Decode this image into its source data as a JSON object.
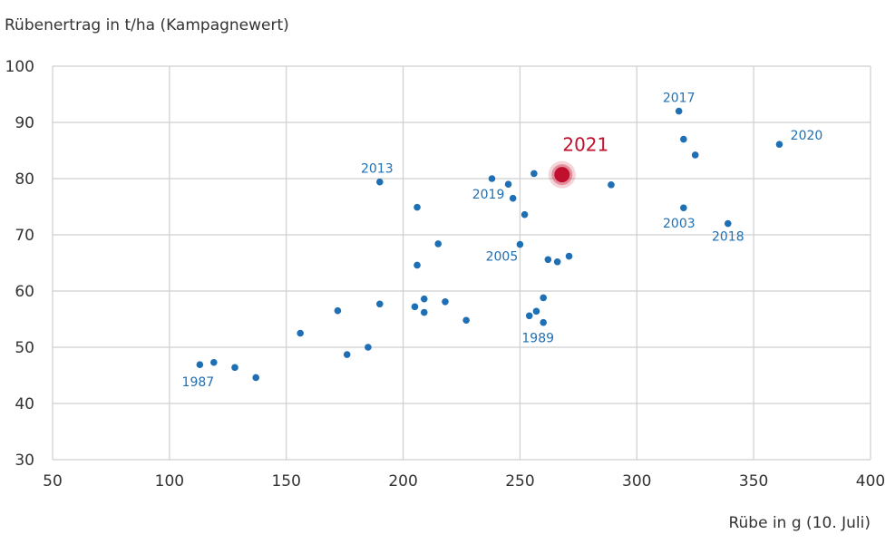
{
  "chart_data": {
    "type": "scatter",
    "ylabel": "Rübenertrag in t/ha (Kampagnewert)",
    "xlabel": "Rübe in g (10. Juli)",
    "xlim": [
      50,
      400
    ],
    "ylim": [
      30,
      100
    ],
    "xticks": [
      50,
      100,
      150,
      200,
      250,
      300,
      350,
      400
    ],
    "yticks": [
      30,
      40,
      50,
      60,
      70,
      80,
      90,
      100
    ],
    "grid": true,
    "colors": {
      "point": "#1f6fb4",
      "highlight": "#c0102e",
      "grid": "#cfcfcf"
    },
    "points": [
      {
        "x": 113,
        "y": 46.9,
        "label": "1987"
      },
      {
        "x": 119,
        "y": 47.3
      },
      {
        "x": 128,
        "y": 46.4
      },
      {
        "x": 137,
        "y": 44.6
      },
      {
        "x": 156,
        "y": 52.5
      },
      {
        "x": 172,
        "y": 56.5
      },
      {
        "x": 176,
        "y": 48.7
      },
      {
        "x": 185,
        "y": 50.0
      },
      {
        "x": 190,
        "y": 79.4,
        "label": "2013"
      },
      {
        "x": 190,
        "y": 57.7
      },
      {
        "x": 205,
        "y": 57.2
      },
      {
        "x": 206,
        "y": 64.6
      },
      {
        "x": 206,
        "y": 74.9
      },
      {
        "x": 209,
        "y": 56.2
      },
      {
        "x": 209,
        "y": 58.6
      },
      {
        "x": 215,
        "y": 68.4
      },
      {
        "x": 218,
        "y": 58.1
      },
      {
        "x": 227,
        "y": 54.8
      },
      {
        "x": 238,
        "y": 80.0
      },
      {
        "x": 245,
        "y": 79.0,
        "label": "2019"
      },
      {
        "x": 247,
        "y": 76.5
      },
      {
        "x": 250,
        "y": 68.3,
        "label": "2005"
      },
      {
        "x": 252,
        "y": 73.6
      },
      {
        "x": 254,
        "y": 55.6
      },
      {
        "x": 256,
        "y": 80.9
      },
      {
        "x": 257,
        "y": 56.4
      },
      {
        "x": 260,
        "y": 58.8
      },
      {
        "x": 260,
        "y": 54.4,
        "label": "1989"
      },
      {
        "x": 262,
        "y": 65.6
      },
      {
        "x": 266,
        "y": 65.2
      },
      {
        "x": 271,
        "y": 66.2
      },
      {
        "x": 289,
        "y": 78.9
      },
      {
        "x": 318,
        "y": 92.0,
        "label": "2017"
      },
      {
        "x": 320,
        "y": 87.0
      },
      {
        "x": 320,
        "y": 74.8,
        "label": "2003"
      },
      {
        "x": 325,
        "y": 84.2
      },
      {
        "x": 339,
        "y": 72.0,
        "label": "2018"
      },
      {
        "x": 361,
        "y": 86.1,
        "label": "2020"
      }
    ],
    "highlight": {
      "x": 268,
      "y": 80.7,
      "label": "2021"
    }
  }
}
